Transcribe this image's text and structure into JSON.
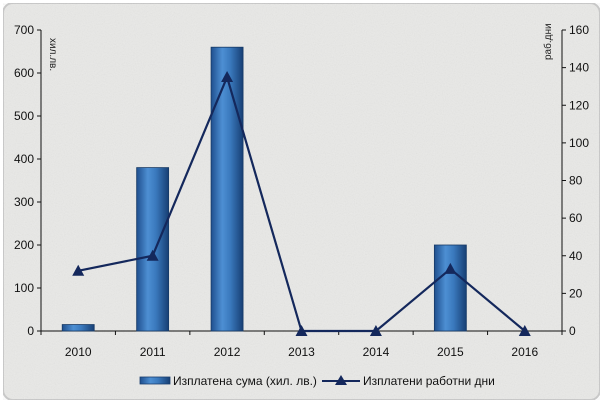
{
  "chart_data": {
    "type": "bar",
    "categories": [
      "2010",
      "2011",
      "2012",
      "2013",
      "2014",
      "2015",
      "2016"
    ],
    "series": [
      {
        "name": "Изплатена сума (хил. лв.)",
        "type": "bar",
        "axis": "left",
        "color": "#3a75b8",
        "values": [
          15,
          380,
          660,
          0,
          0,
          200,
          0
        ]
      },
      {
        "name": "Изплатени работни дни",
        "type": "line",
        "axis": "right",
        "marker": "triangle",
        "color": "#14285c",
        "values": [
          32,
          40,
          135,
          0,
          0,
          33,
          0
        ]
      }
    ],
    "ylabel": "хил.лв.",
    "y2label": "раб.дни",
    "ylim": [
      0,
      700
    ],
    "y2lim": [
      0,
      160
    ],
    "yticks": [
      0,
      100,
      200,
      300,
      400,
      500,
      600,
      700
    ],
    "y2ticks": [
      0,
      20,
      40,
      60,
      80,
      100,
      120,
      140,
      160
    ],
    "legend": "bottom",
    "grid": false,
    "background": "textured-light-gray"
  }
}
